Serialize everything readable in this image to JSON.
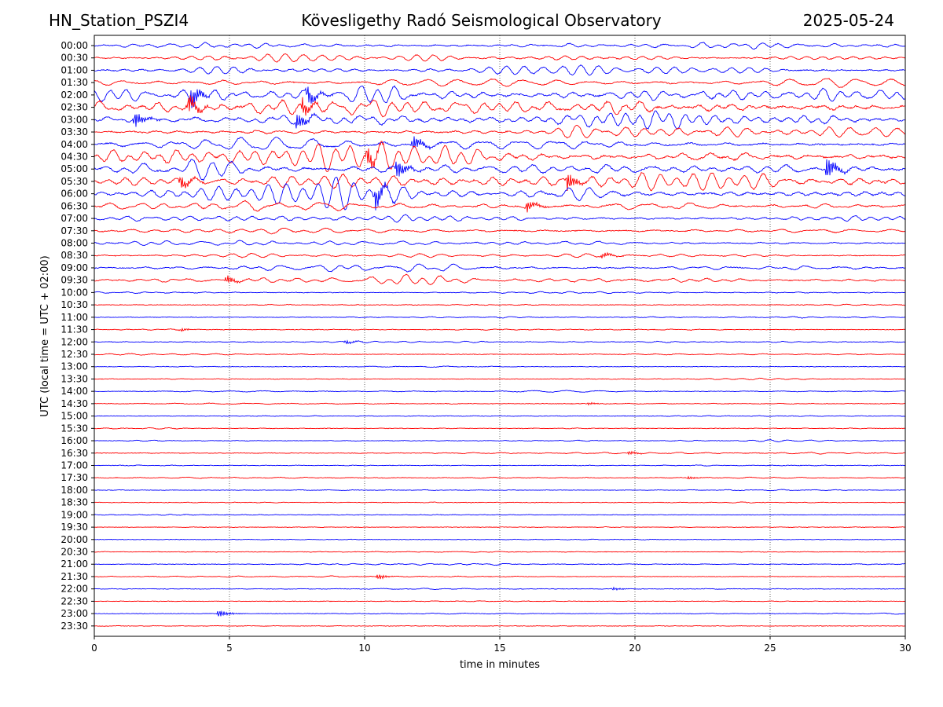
{
  "header": {
    "station": "HN_Station_PSZI4",
    "observatory": "Kövesligethy Radó Seismological Observatory",
    "date": "2025-05-24"
  },
  "chart_data": {
    "type": "line",
    "subtype": "helicorder",
    "title": "Kövesligethy Radó Seismological Observatory",
    "xlabel": "time in minutes",
    "ylabel": "UTC (local time = UTC + 02:00)",
    "xlim": [
      0,
      30
    ],
    "x_ticks": [
      0,
      5,
      10,
      15,
      20,
      25,
      30
    ],
    "grid": "vertical dotted lines at every 5 minutes",
    "colors": {
      "even_rows": "#0000ff",
      "odd_rows": "#ff0000"
    },
    "row_labels": [
      "00:00",
      "00:30",
      "01:00",
      "01:30",
      "02:00",
      "02:30",
      "03:00",
      "03:30",
      "04:00",
      "04:30",
      "05:00",
      "05:30",
      "06:00",
      "06:30",
      "07:00",
      "07:30",
      "08:00",
      "08:30",
      "09:00",
      "09:30",
      "10:00",
      "10:30",
      "11:00",
      "11:30",
      "12:00",
      "12:30",
      "13:00",
      "13:30",
      "14:00",
      "14:30",
      "15:00",
      "15:30",
      "16:00",
      "16:30",
      "17:00",
      "17:30",
      "18:00",
      "18:30",
      "19:00",
      "19:30",
      "20:00",
      "20:30",
      "21:00",
      "21:30",
      "22:00",
      "22:30",
      "23:00",
      "23:30"
    ],
    "row_activity": [
      0.2,
      0.22,
      0.26,
      0.3,
      0.55,
      0.7,
      0.6,
      0.38,
      0.45,
      0.65,
      0.58,
      0.62,
      0.56,
      0.38,
      0.25,
      0.22,
      0.16,
      0.16,
      0.22,
      0.25,
      0.05,
      0.03,
      0.04,
      0.04,
      0.05,
      0.04,
      0.03,
      0.03,
      0.04,
      0.04,
      0.03,
      0.03,
      0.04,
      0.04,
      0.03,
      0.04,
      0.03,
      0.02,
      0.02,
      0.02,
      0.02,
      0.03,
      0.04,
      0.03,
      0.03,
      0.02,
      0.03,
      0.02
    ],
    "events": [
      {
        "row": "02:00",
        "minute": 3.6,
        "amplitude": 1.2
      },
      {
        "row": "02:30",
        "minute": 3.5,
        "amplitude": 1.0
      },
      {
        "row": "02:00",
        "minute": 7.9,
        "amplitude": 0.9
      },
      {
        "row": "02:30",
        "minute": 7.7,
        "amplitude": 0.9
      },
      {
        "row": "03:00",
        "minute": 1.5,
        "amplitude": 0.9
      },
      {
        "row": "03:00",
        "minute": 7.5,
        "amplitude": 0.9
      },
      {
        "row": "04:00",
        "minute": 11.8,
        "amplitude": 0.8
      },
      {
        "row": "04:30",
        "minute": 10.1,
        "amplitude": 1.1
      },
      {
        "row": "05:00",
        "minute": 11.2,
        "amplitude": 1.0
      },
      {
        "row": "05:00",
        "minute": 27.1,
        "amplitude": 1.2
      },
      {
        "row": "05:30",
        "minute": 17.5,
        "amplitude": 1.0
      },
      {
        "row": "05:30",
        "minute": 3.2,
        "amplitude": 0.7
      },
      {
        "row": "06:00",
        "minute": 10.4,
        "amplitude": 1.2
      },
      {
        "row": "06:30",
        "minute": 16.0,
        "amplitude": 0.6
      },
      {
        "row": "08:30",
        "minute": 18.8,
        "amplitude": 0.3
      },
      {
        "row": "09:30",
        "minute": 4.9,
        "amplitude": 0.5
      },
      {
        "row": "11:30",
        "minute": 3.2,
        "amplitude": 0.15
      },
      {
        "row": "12:00",
        "minute": 9.3,
        "amplitude": 0.2
      },
      {
        "row": "14:30",
        "minute": 18.3,
        "amplitude": 0.15
      },
      {
        "row": "16:30",
        "minute": 19.8,
        "amplitude": 0.2
      },
      {
        "row": "17:30",
        "minute": 22.0,
        "amplitude": 0.15
      },
      {
        "row": "21:30",
        "minute": 10.5,
        "amplitude": 0.3
      },
      {
        "row": "22:00",
        "minute": 19.2,
        "amplitude": 0.15
      },
      {
        "row": "23:00",
        "minute": 4.6,
        "amplitude": 0.4
      }
    ]
  }
}
